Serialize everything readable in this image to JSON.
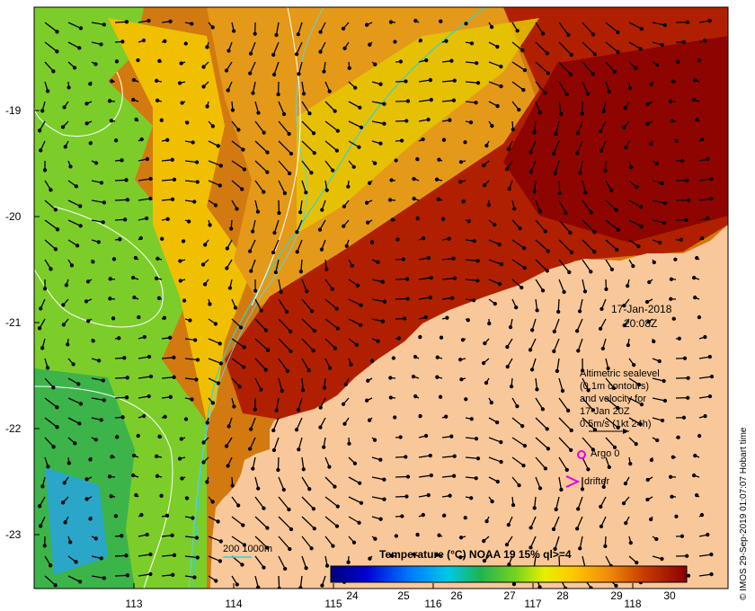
{
  "map": {
    "latitude_ticks": [
      "-19",
      "-20",
      "-21",
      "-22",
      "-23"
    ],
    "longitude_ticks": [
      "113",
      "114",
      "115",
      "116",
      "117",
      "118"
    ],
    "date": "17-Jan-2018",
    "time": "20:08Z",
    "sealevel_note": [
      "Altimetric sealevel",
      "(0.1m contours)",
      "and velocity for",
      "17-Jan 20Z",
      "0.5m/s (1kt 24h)"
    ],
    "argo_label": "Argo 0",
    "drifter_label": "drifter",
    "bathymetry_label": "200  1000m",
    "credit": "© IMOS 29-Sep-2019 01:07:07 Hobart time",
    "colors": {
      "land": "#f9c89a",
      "warm": "#b22000",
      "hot": "#8c0000",
      "mid": "#e08a14",
      "green": "#3cb43c",
      "cyan": "#2fd3d3",
      "argo": "#e100e1"
    }
  },
  "colorbar": {
    "title": "Temperature (°C) NOAA 19 15% ql>=4",
    "ticks": [
      "24",
      "25",
      "26",
      "27",
      "28",
      "29",
      "30"
    ],
    "range": [
      23.6,
      30.3
    ]
  }
}
